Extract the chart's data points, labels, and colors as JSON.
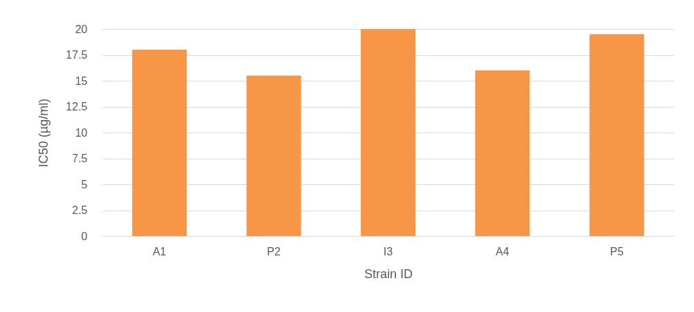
{
  "chart_data": {
    "type": "bar",
    "xlabel": "Strain ID",
    "ylabel": "IC50 (µg/ml)",
    "categories": [
      "A1",
      "P2",
      "I3",
      "A4",
      "P5"
    ],
    "values": [
      18,
      15.5,
      20,
      16,
      19.5
    ],
    "color": "#f79646",
    "ylim": [
      0,
      20
    ],
    "yticks": [
      0,
      2.5,
      5,
      7.5,
      10,
      12.5,
      15,
      17.5,
      20
    ],
    "grid": "y"
  }
}
